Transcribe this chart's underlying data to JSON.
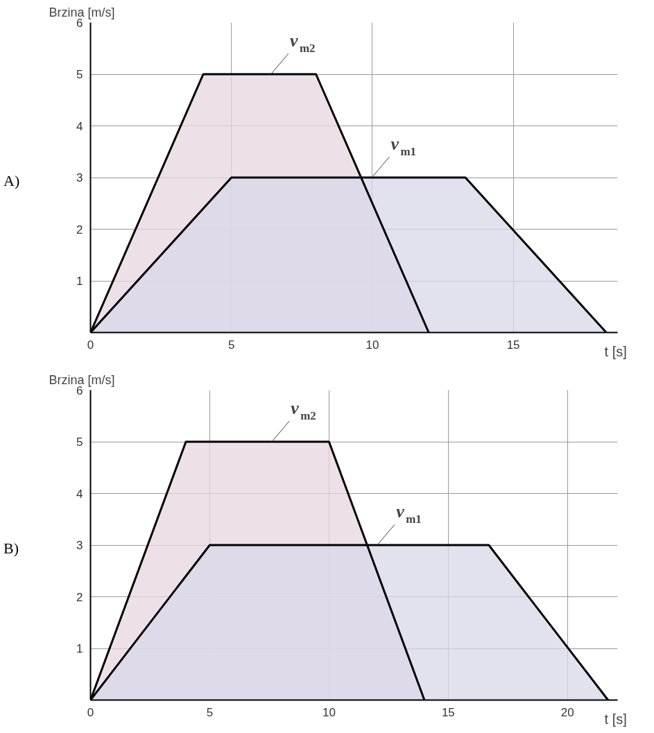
{
  "chart_data": [
    {
      "type": "area",
      "xlabel": "t  [s]",
      "ylabel": "Brzina [m/s]",
      "annotations": [
        "A)"
      ],
      "series": [
        {
          "name": "v$_{m2}$",
          "color": "#e8d6e2",
          "x": [
            0,
            4,
            8,
            12
          ],
          "values": [
            0,
            5,
            5,
            0
          ]
        },
        {
          "name": "v$_{m1}$",
          "color": "#d8d8ea",
          "x": [
            0,
            5,
            13.3,
            18.3
          ],
          "values": [
            0,
            3,
            3,
            0
          ]
        }
      ],
      "xlim": [
        0,
        18.7
      ],
      "ylim": [
        0,
        6
      ],
      "xticks": [
        0,
        5,
        10,
        15
      ],
      "yticks": [
        {
          "value": 0,
          "label": null
        },
        1,
        2,
        3,
        4,
        5,
        6
      ],
      "grid": true,
      "legend": false
    },
    {
      "type": "area",
      "xlabel": "t  [s]",
      "ylabel": "Brzina [m/s]",
      "annotations": [
        "B)"
      ],
      "series": [
        {
          "name": "v$_{m2}$",
          "color": "#e8d6e2",
          "x": [
            0,
            4,
            10,
            14
          ],
          "values": [
            0,
            5,
            5,
            0
          ]
        },
        {
          "name": "v$_{m1}$",
          "color": "#d8d8ea",
          "x": [
            0,
            5,
            16.7,
            21.7
          ],
          "values": [
            0,
            3,
            3,
            0
          ]
        }
      ],
      "xlim": [
        0,
        22.1
      ],
      "ylim": [
        0,
        6
      ],
      "xticks": [
        0,
        5,
        10,
        15,
        20
      ],
      "yticks": [
        {
          "value": 0,
          "label": null
        },
        1,
        2,
        3,
        4,
        5,
        6
      ],
      "grid": true,
      "legend": false
    }
  ]
}
